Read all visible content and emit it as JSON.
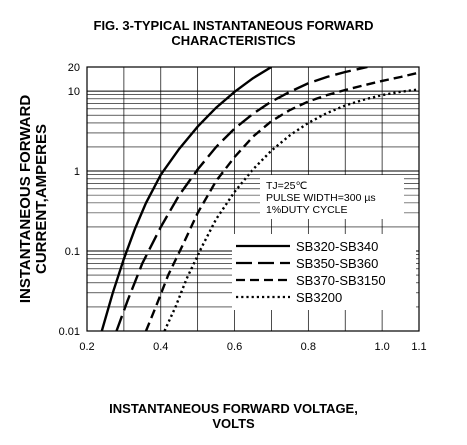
{
  "chart_data": {
    "type": "line",
    "title_line1": "FIG. 3-TYPICAL INSTANTANEOUS FORWARD",
    "title_line2": "CHARACTERISTICS",
    "xlabel_line1": "INSTANTANEOUS FORWARD VOLTAGE,",
    "xlabel_line2": "VOLTS",
    "ylabel_line1": "INSTANTANEOUS FORWARD",
    "ylabel_line2": "CURRENT,AMPERES",
    "x_scale": "linear",
    "y_scale": "log",
    "xlim": [
      0.2,
      1.1
    ],
    "ylim": [
      0.01,
      20
    ],
    "x_ticks": [
      {
        "value": 0.2,
        "label": "0.2"
      },
      {
        "value": 0.4,
        "label": "0.4"
      },
      {
        "value": 0.6,
        "label": "0.6"
      },
      {
        "value": 0.8,
        "label": "0.8"
      },
      {
        "value": 1.0,
        "label": "1.0"
      },
      {
        "value": 1.1,
        "label": "1.1"
      }
    ],
    "y_ticks": [
      {
        "value": 0.01,
        "label": "0.01"
      },
      {
        "value": 0.1,
        "label": "0.1"
      },
      {
        "value": 1,
        "label": "1"
      },
      {
        "value": 10,
        "label": "10"
      },
      {
        "value": 20,
        "label": "20"
      }
    ],
    "grid": true,
    "conditions": [
      "TJ=25℃",
      "PULSE WIDTH=300 µs",
      "1%DUTY CYCLE"
    ],
    "legend_position": "lower-right",
    "series": [
      {
        "name": "SB320-SB340",
        "style": "solid",
        "points": [
          [
            0.24,
            0.01
          ],
          [
            0.27,
            0.03
          ],
          [
            0.3,
            0.08
          ],
          [
            0.33,
            0.19
          ],
          [
            0.36,
            0.4
          ],
          [
            0.4,
            0.9
          ],
          [
            0.45,
            1.9
          ],
          [
            0.5,
            3.6
          ],
          [
            0.55,
            6.2
          ],
          [
            0.6,
            9.8
          ],
          [
            0.65,
            14.5
          ],
          [
            0.7,
            20
          ]
        ]
      },
      {
        "name": "SB350-SB360",
        "style": "long-dash",
        "points": [
          [
            0.28,
            0.01
          ],
          [
            0.31,
            0.024
          ],
          [
            0.35,
            0.07
          ],
          [
            0.4,
            0.2
          ],
          [
            0.45,
            0.5
          ],
          [
            0.5,
            1.05
          ],
          [
            0.55,
            2.0
          ],
          [
            0.6,
            3.4
          ],
          [
            0.65,
            5.2
          ],
          [
            0.7,
            7.4
          ],
          [
            0.75,
            9.8
          ],
          [
            0.8,
            12.5
          ],
          [
            0.85,
            15
          ],
          [
            0.9,
            17.3
          ],
          [
            0.96,
            20
          ]
        ]
      },
      {
        "name": "SB370-SB3150",
        "style": "dash",
        "points": [
          [
            0.36,
            0.01
          ],
          [
            0.39,
            0.022
          ],
          [
            0.42,
            0.05
          ],
          [
            0.46,
            0.12
          ],
          [
            0.5,
            0.3
          ],
          [
            0.55,
            0.75
          ],
          [
            0.6,
            1.5
          ],
          [
            0.65,
            2.7
          ],
          [
            0.7,
            4.2
          ],
          [
            0.75,
            5.8
          ],
          [
            0.8,
            7.4
          ],
          [
            0.85,
            8.9
          ],
          [
            0.9,
            10.3
          ],
          [
            0.95,
            11.8
          ],
          [
            1.0,
            13.4
          ],
          [
            1.05,
            15
          ],
          [
            1.1,
            17
          ]
        ]
      },
      {
        "name": "SB3200",
        "style": "dot",
        "points": [
          [
            0.41,
            0.01
          ],
          [
            0.44,
            0.02
          ],
          [
            0.47,
            0.045
          ],
          [
            0.51,
            0.11
          ],
          [
            0.55,
            0.25
          ],
          [
            0.6,
            0.55
          ],
          [
            0.65,
            1.05
          ],
          [
            0.7,
            1.8
          ],
          [
            0.75,
            2.8
          ],
          [
            0.8,
            4.0
          ],
          [
            0.85,
            5.3
          ],
          [
            0.9,
            6.6
          ],
          [
            0.95,
            7.8
          ],
          [
            1.0,
            8.9
          ],
          [
            1.05,
            9.8
          ],
          [
            1.1,
            10.5
          ]
        ]
      }
    ]
  }
}
